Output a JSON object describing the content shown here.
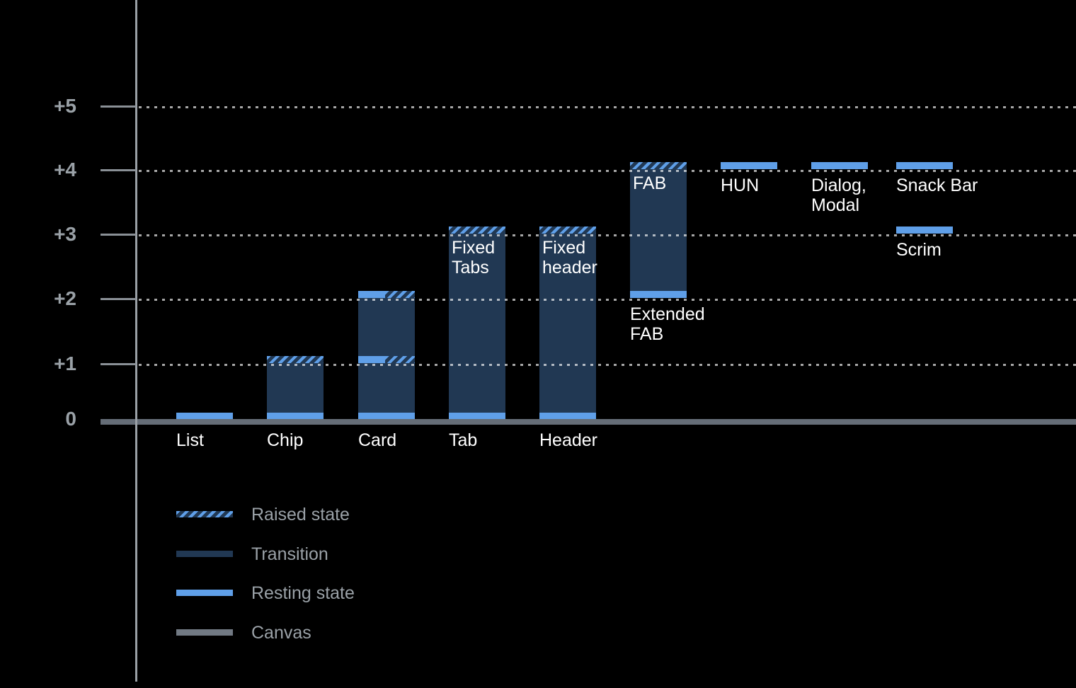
{
  "colors": {
    "background": "#000000",
    "resting": "#5F9FE8",
    "transition": "#213853",
    "canvas_line": "#656D77",
    "canvas_swatch": "#717983",
    "axis": "#9AA0A6",
    "tick": "#8A9096",
    "grid_dash": "rgba(255,255,255,0.65)",
    "label_white": "#FFFFFF",
    "label_gray": "#9AA1A7"
  },
  "y_axis": {
    "ticks": [
      {
        "label": "+5",
        "level": 5
      },
      {
        "label": "+4",
        "level": 4
      },
      {
        "label": "+3",
        "level": 3
      },
      {
        "label": "+2",
        "level": 2
      },
      {
        "label": "+1",
        "level": 1
      },
      {
        "label": "0",
        "level": 0
      }
    ]
  },
  "chart_data": {
    "type": "bar",
    "title": "",
    "ylim": [
      0,
      5.5
    ],
    "y_tick_labels": [
      "0",
      "+1",
      "+2",
      "+3",
      "+4",
      "+5"
    ],
    "grid": "dotted horizontal lines at +1..+5, drawn over bars",
    "legend_position": "bottom-left",
    "components": [
      {
        "id": "list",
        "column": 0,
        "axis_label": "List",
        "segments": [
          {
            "kind": "resting",
            "at": 0
          }
        ]
      },
      {
        "id": "chip",
        "column": 1,
        "axis_label": "Chip",
        "segments": [
          {
            "kind": "transition",
            "from": 0,
            "to": 1
          },
          {
            "kind": "resting",
            "at": 0
          },
          {
            "kind": "raised",
            "at": 1
          }
        ]
      },
      {
        "id": "card",
        "column": 2,
        "axis_label": "Card",
        "segments": [
          {
            "kind": "transition",
            "from": 0,
            "to": 1
          },
          {
            "kind": "transition",
            "from": 1,
            "to": 2
          },
          {
            "kind": "resting",
            "at": 0
          },
          {
            "kind": "resting-raised",
            "at": 1
          },
          {
            "kind": "resting-raised",
            "at": 2
          }
        ]
      },
      {
        "id": "tab",
        "column": 3,
        "axis_label": "Tab",
        "bar_label": [
          "Fixed",
          "Tabs"
        ],
        "segments": [
          {
            "kind": "transition",
            "from": 0,
            "to": 3
          },
          {
            "kind": "resting",
            "at": 0
          },
          {
            "kind": "raised",
            "at": 3
          }
        ]
      },
      {
        "id": "header",
        "column": 4,
        "axis_label": "Header",
        "bar_label": [
          "Fixed",
          "header"
        ],
        "segments": [
          {
            "kind": "transition",
            "from": 0,
            "to": 3
          },
          {
            "kind": "resting",
            "at": 0
          },
          {
            "kind": "raised",
            "at": 3
          }
        ]
      },
      {
        "id": "extended-fab",
        "column": 5,
        "bar_label": [
          "FAB"
        ],
        "below_label": [
          "Extended",
          "FAB"
        ],
        "below_label_at": 2,
        "segments": [
          {
            "kind": "transition",
            "from": 2,
            "to": 4
          },
          {
            "kind": "resting",
            "at": 2
          },
          {
            "kind": "raised",
            "at": 4
          }
        ]
      },
      {
        "id": "hun",
        "column": 6,
        "below_label": [
          "HUN"
        ],
        "below_label_at": 4,
        "segments": [
          {
            "kind": "resting",
            "at": 4
          }
        ]
      },
      {
        "id": "dialog-modal",
        "column": 7,
        "below_label": [
          "Dialog,",
          "Modal"
        ],
        "below_label_at": 4,
        "segments": [
          {
            "kind": "resting",
            "at": 4
          }
        ]
      },
      {
        "id": "snack-bar",
        "column": 8,
        "below_label": [
          "Snack Bar"
        ],
        "below_label_at": 4,
        "segments": [
          {
            "kind": "resting",
            "at": 4
          }
        ]
      },
      {
        "id": "scrim",
        "column": 8,
        "below_label": [
          "Scrim"
        ],
        "below_label_at": 3,
        "segments": [
          {
            "kind": "resting",
            "at": 3
          }
        ]
      }
    ]
  },
  "legend": {
    "items": [
      {
        "key": "raised",
        "label": "Raised state"
      },
      {
        "key": "transition",
        "label": "Transition"
      },
      {
        "key": "resting",
        "label": "Resting state"
      },
      {
        "key": "canvas",
        "label": "Canvas"
      }
    ]
  }
}
